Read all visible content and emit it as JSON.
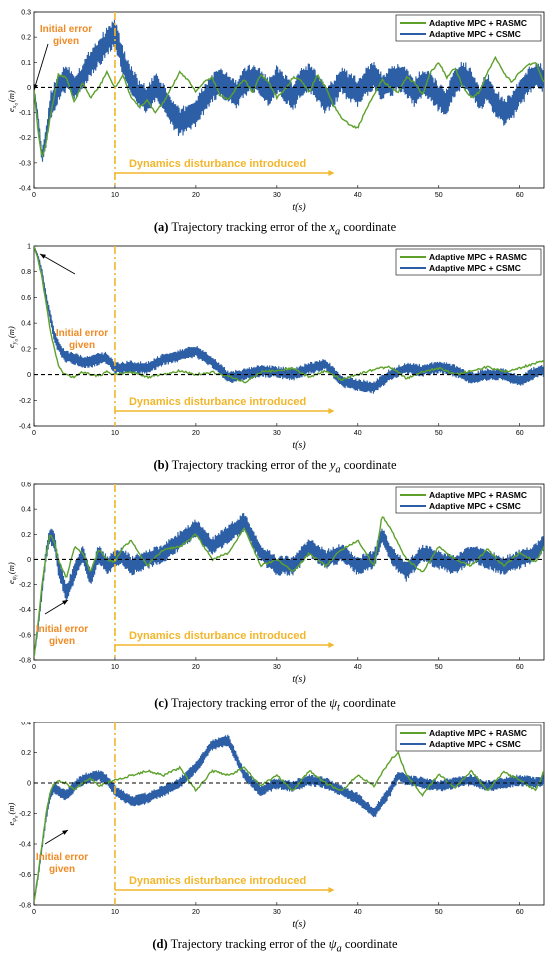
{
  "colors": {
    "rasmc": "#5da12c",
    "csmc": "#2d5fa6",
    "reference": "#000000",
    "disturbance": "#f2b62a",
    "initial_error_text": "#f08a24"
  },
  "chart_data": [
    {
      "type": "line",
      "panel": "a",
      "caption": {
        "tag": "(a)",
        "text_before": " Trajectory tracking error of the ",
        "symbol": "x",
        "sub": "a",
        "text_after": " coordinate"
      },
      "ylabel": {
        "base": "e",
        "sub": "x",
        "subsub": "a",
        "unit": "(m)"
      },
      "xlabel": "t(s)",
      "xlim": [
        0,
        63
      ],
      "ylim": [
        -0.4,
        0.3
      ],
      "xticks": [
        "0",
        "10",
        "20",
        "30",
        "40",
        "50",
        "60"
      ],
      "xtick_values": [
        0,
        10,
        20,
        30,
        40,
        50,
        60
      ],
      "yticks": [
        "-0.4",
        "-0.3",
        "-0.2",
        "-0.1",
        "0",
        "0.1",
        "0.2",
        "0.3"
      ],
      "ytick_values": [
        -0.4,
        -0.3,
        -0.2,
        -0.1,
        0,
        0.1,
        0.2,
        0.3
      ],
      "legend": [
        "Adaptive MPC + RASMC",
        "Adaptive MPC + CSMC"
      ],
      "legend_position": "top-right",
      "annotations": {
        "initial_error": [
          "Initial error",
          "given"
        ],
        "disturbance": "Dynamics disturbance introduced",
        "disturbance_time": 10
      },
      "series": [
        {
          "name": "Adaptive MPC + RASMC",
          "x": [
            0,
            0.5,
            1,
            1.5,
            2,
            3,
            4,
            5,
            6,
            7,
            8,
            9,
            10,
            11,
            12,
            13,
            14,
            15,
            16,
            17,
            18,
            19,
            20,
            21,
            22,
            23,
            24,
            25,
            26,
            27,
            28,
            29,
            30,
            31,
            32,
            33,
            34,
            35,
            36,
            37,
            38,
            39,
            40,
            41,
            42,
            43,
            44,
            45,
            46,
            47,
            48,
            49,
            50,
            51,
            52,
            53,
            54,
            55,
            56,
            57,
            58,
            59,
            60,
            61,
            62,
            63
          ],
          "y": [
            0,
            -0.18,
            -0.28,
            -0.22,
            -0.12,
            0.05,
            0.04,
            -0.06,
            0.02,
            -0.04,
            0.0,
            0.06,
            0.0,
            0.05,
            -0.04,
            -0.08,
            -0.05,
            -0.1,
            -0.06,
            0.0,
            0.06,
            0.03,
            -0.02,
            0.02,
            0.04,
            -0.03,
            -0.05,
            0.0,
            0.03,
            -0.02,
            0.05,
            0.02,
            -0.04,
            -0.01,
            0.04,
            0.03,
            -0.02,
            0.05,
            0.0,
            -0.07,
            -0.12,
            -0.15,
            -0.16,
            -0.09,
            -0.03,
            0.03,
            0.0,
            -0.02,
            0.04,
            0.02,
            -0.03,
            0.06,
            0.1,
            0.04,
            0.08,
            0.0,
            -0.04,
            -0.02,
            0.06,
            0.12,
            0.06,
            0.02,
            0.06,
            0.09,
            0.1,
            0.02
          ]
        },
        {
          "name": "Adaptive MPC + CSMC",
          "amplitude": 0.06,
          "x": [
            0,
            0.5,
            1,
            1.5,
            2,
            3,
            4,
            5,
            6,
            7,
            8,
            9,
            10,
            11,
            12,
            13,
            14,
            15,
            16,
            17,
            18,
            19,
            20,
            21,
            22,
            23,
            24,
            25,
            26,
            27,
            28,
            29,
            30,
            31,
            32,
            33,
            34,
            35,
            36,
            37,
            38,
            39,
            40,
            41,
            42,
            43,
            44,
            45,
            46,
            47,
            48,
            49,
            50,
            51,
            52,
            53,
            54,
            55,
            56,
            57,
            58,
            59,
            60,
            61,
            62,
            63
          ],
          "y": [
            0,
            -0.12,
            -0.28,
            -0.2,
            -0.08,
            0.0,
            0.04,
            0.0,
            0.04,
            0.1,
            0.14,
            0.18,
            0.22,
            0.1,
            0.03,
            -0.03,
            -0.05,
            0.0,
            -0.04,
            -0.1,
            -0.14,
            -0.12,
            -0.1,
            -0.05,
            0.0,
            0.02,
            0.0,
            -0.03,
            0.02,
            0.04,
            0.02,
            -0.02,
            0.03,
            0.0,
            -0.04,
            0.02,
            0.04,
            0.0,
            -0.05,
            -0.02,
            0.03,
            0.0,
            -0.02,
            0.02,
            0.05,
            0.0,
            0.02,
            0.04,
            0.02,
            -0.02,
            0.02,
            0.0,
            -0.04,
            -0.06,
            0.02,
            0.05,
            0.02,
            -0.04,
            0.0,
            -0.06,
            -0.1,
            -0.08,
            -0.02,
            0.02,
            0.05,
            0.03
          ]
        }
      ]
    },
    {
      "type": "line",
      "panel": "b",
      "caption": {
        "tag": "(b)",
        "text_before": " Trajectory tracking error of the ",
        "symbol": "y",
        "sub": "a",
        "text_after": " coordinate"
      },
      "ylabel": {
        "base": "e",
        "sub": "y",
        "subsub": "a",
        "unit": "(m)"
      },
      "xlabel": "t(s)",
      "xlim": [
        0,
        63
      ],
      "ylim": [
        -0.4,
        1
      ],
      "xticks": [
        "0",
        "10",
        "20",
        "30",
        "40",
        "50",
        "60"
      ],
      "xtick_values": [
        0,
        10,
        20,
        30,
        40,
        50,
        60
      ],
      "yticks": [
        "-0.4",
        "-0.2",
        "0",
        "0.2",
        "0.4",
        "0.6",
        "0.8",
        "1"
      ],
      "ytick_values": [
        -0.4,
        -0.2,
        0,
        0.2,
        0.4,
        0.6,
        0.8,
        1
      ],
      "legend": [
        "Adaptive MPC + RASMC",
        "Adaptive MPC + CSMC"
      ],
      "legend_position": "top-right",
      "annotations": {
        "initial_error": [
          "Initial error",
          "given"
        ],
        "disturbance": "Dynamics disturbance introduced",
        "disturbance_time": 10
      },
      "series": [
        {
          "name": "Adaptive MPC + RASMC",
          "x": [
            0,
            0.5,
            1,
            1.5,
            2,
            2.5,
            3,
            3.5,
            4,
            5,
            6,
            7,
            8,
            9,
            10,
            12,
            14,
            16,
            18,
            20,
            22,
            24,
            26,
            28,
            30,
            32,
            34,
            36,
            38,
            40,
            42,
            44,
            46,
            48,
            50,
            52,
            54,
            56,
            58,
            60,
            62,
            63
          ],
          "y": [
            1,
            0.9,
            0.75,
            0.55,
            0.35,
            0.2,
            0.08,
            0.02,
            0.0,
            -0.02,
            0.02,
            0.0,
            -0.01,
            0.02,
            0.0,
            0.02,
            -0.02,
            0.0,
            0.03,
            0.0,
            0.02,
            -0.01,
            -0.06,
            0.02,
            0.03,
            0.05,
            -0.02,
            0.03,
            -0.04,
            0.0,
            0.04,
            0.06,
            -0.03,
            0.02,
            0.05,
            0.0,
            0.03,
            0.06,
            0.02,
            0.05,
            0.09,
            0.1
          ]
        },
        {
          "name": "Adaptive MPC + CSMC",
          "amplitude": 0.05,
          "x": [
            0,
            0.5,
            1,
            1.5,
            2,
            2.5,
            3,
            3.5,
            4,
            5,
            6,
            7,
            8,
            9,
            10,
            12,
            14,
            16,
            18,
            20,
            22,
            24,
            26,
            28,
            30,
            32,
            34,
            36,
            38,
            40,
            42,
            44,
            46,
            48,
            50,
            52,
            54,
            56,
            58,
            60,
            62,
            63
          ],
          "y": [
            1,
            0.92,
            0.8,
            0.6,
            0.45,
            0.3,
            0.22,
            0.17,
            0.14,
            0.12,
            0.1,
            0.1,
            0.12,
            0.13,
            0.05,
            0.06,
            0.05,
            0.12,
            0.15,
            0.18,
            0.1,
            -0.02,
            0.0,
            0.03,
            0.02,
            0.0,
            0.05,
            0.08,
            -0.05,
            -0.08,
            -0.1,
            0.0,
            0.05,
            0.03,
            0.06,
            0.03,
            -0.03,
            0.0,
            0.0,
            -0.05,
            0.02,
            0.03
          ]
        }
      ]
    },
    {
      "type": "line",
      "panel": "c",
      "caption": {
        "tag": "(c)",
        "text_before": " Trajectory tracking error of the ",
        "symbol": "ψ",
        "sub": "t",
        "text_after": " coordinate"
      },
      "ylabel": {
        "base": "e",
        "sub": "ψ",
        "subsub": "t",
        "unit": "(m)"
      },
      "xlabel": "t(s)",
      "xlim": [
        0,
        63
      ],
      "ylim": [
        -0.8,
        0.6
      ],
      "xticks": [
        "0",
        "10",
        "20",
        "30",
        "40",
        "50",
        "60"
      ],
      "xtick_values": [
        0,
        10,
        20,
        30,
        40,
        50,
        60
      ],
      "yticks": [
        "-0.8",
        "-0.6",
        "-0.4",
        "-0.2",
        "0",
        "0.2",
        "0.4",
        "0.6"
      ],
      "ytick_values": [
        -0.8,
        -0.6,
        -0.4,
        -0.2,
        0,
        0.2,
        0.4,
        0.6
      ],
      "legend": [
        "Adaptive MPC + RASMC",
        "Adaptive MPC + CSMC"
      ],
      "legend_position": "top-right",
      "annotations": {
        "initial_error": [
          "Initial error",
          "given"
        ],
        "disturbance": "Dynamics disturbance introduced",
        "disturbance_time": 10
      },
      "series": [
        {
          "name": "Adaptive MPC + RASMC",
          "x": [
            0,
            0.5,
            1,
            1.5,
            2,
            2.5,
            3,
            4,
            5,
            6,
            7,
            8,
            9,
            10,
            11,
            12,
            14,
            16,
            18,
            20,
            22,
            24,
            26,
            28,
            30,
            32,
            34,
            36,
            38,
            40,
            42,
            43,
            44,
            46,
            48,
            50,
            52,
            54,
            56,
            58,
            60,
            62,
            63
          ],
          "y": [
            -0.78,
            -0.5,
            -0.2,
            0.05,
            0.2,
            0.15,
            0.0,
            -0.15,
            0.1,
            0.05,
            -0.1,
            0.08,
            0.0,
            -0.02,
            0.1,
            0.15,
            -0.05,
            0.08,
            0.1,
            0.2,
            0.0,
            0.05,
            0.25,
            -0.05,
            0.0,
            -0.1,
            0.05,
            -0.05,
            0.08,
            0.15,
            -0.05,
            0.35,
            0.25,
            0.0,
            -0.1,
            0.1,
            0.0,
            -0.05,
            0.08,
            -0.05,
            0.05,
            -0.02,
            0.1
          ]
        },
        {
          "name": "Adaptive MPC + CSMC",
          "amplitude": 0.08,
          "x": [
            0,
            0.5,
            1,
            1.5,
            2,
            2.5,
            3,
            4,
            5,
            6,
            7,
            8,
            9,
            10,
            11,
            12,
            14,
            16,
            18,
            20,
            22,
            24,
            26,
            28,
            30,
            32,
            34,
            36,
            38,
            40,
            42,
            43,
            44,
            46,
            48,
            50,
            52,
            54,
            56,
            58,
            60,
            62,
            63
          ],
          "y": [
            -0.78,
            -0.55,
            -0.25,
            0.05,
            0.2,
            0.15,
            -0.05,
            -0.28,
            -0.1,
            0.05,
            -0.15,
            0.05,
            -0.05,
            0.0,
            0.02,
            -0.05,
            0.0,
            0.05,
            0.15,
            0.25,
            0.1,
            0.2,
            0.3,
            0.05,
            -0.05,
            -0.05,
            0.1,
            0.0,
            0.05,
            -0.05,
            0.0,
            0.2,
            0.05,
            -0.1,
            0.05,
            0.0,
            -0.05,
            0.05,
            0.0,
            -0.05,
            0.0,
            0.05,
            0.15
          ]
        }
      ]
    },
    {
      "type": "line",
      "panel": "d",
      "caption": {
        "tag": "(d)",
        "text_before": " Trajectory tracking error of the ",
        "symbol": "ψ",
        "sub": "a",
        "text_after": " coordinate"
      },
      "ylabel": {
        "base": "e",
        "sub": "ψ",
        "subsub": "a",
        "unit": "(m)"
      },
      "xlabel": "t(s)",
      "xlim": [
        0,
        63
      ],
      "ylim": [
        -0.8,
        0.4
      ],
      "xticks": [
        "0",
        "10",
        "20",
        "30",
        "40",
        "50",
        "60"
      ],
      "xtick_values": [
        0,
        10,
        20,
        30,
        40,
        50,
        60
      ],
      "yticks": [
        "-0.8",
        "-0.6",
        "-0.4",
        "-0.2",
        "0",
        "0.2",
        "0.4"
      ],
      "ytick_values": [
        -0.8,
        -0.6,
        -0.4,
        -0.2,
        0,
        0.2,
        0.4
      ],
      "legend": [
        "Adaptive MPC + RASMC",
        "Adaptive MPC + CSMC"
      ],
      "legend_position": "top-right",
      "annotations": {
        "initial_error": [
          "Initial error",
          "given"
        ],
        "disturbance": "Dynamics disturbance introduced",
        "disturbance_time": 10
      },
      "series": [
        {
          "name": "Adaptive MPC + RASMC",
          "x": [
            0,
            0.5,
            1,
            1.5,
            2,
            2.5,
            3,
            4,
            5,
            6,
            7,
            8,
            9,
            10,
            12,
            14,
            16,
            18,
            20,
            22,
            24,
            26,
            28,
            30,
            32,
            34,
            36,
            38,
            40,
            42,
            44,
            45,
            46,
            48,
            50,
            52,
            54,
            56,
            58,
            60,
            62,
            63
          ],
          "y": [
            -0.78,
            -0.6,
            -0.4,
            -0.2,
            -0.06,
            0.0,
            0.01,
            0.0,
            -0.05,
            0.0,
            0.03,
            -0.02,
            0.0,
            0.02,
            0.05,
            0.08,
            0.05,
            0.1,
            -0.05,
            0.08,
            0.05,
            0.1,
            -0.02,
            0.05,
            -0.05,
            0.08,
            0.0,
            -0.05,
            0.05,
            -0.02,
            0.15,
            0.2,
            0.05,
            -0.08,
            0.06,
            -0.03,
            0.08,
            -0.05,
            0.07,
            0.02,
            -0.05,
            0.08
          ]
        },
        {
          "name": "Adaptive MPC + CSMC",
          "amplitude": 0.04,
          "x": [
            0,
            0.5,
            1,
            1.5,
            2,
            2.5,
            3,
            4,
            5,
            6,
            7,
            8,
            9,
            10,
            12,
            14,
            16,
            18,
            20,
            22,
            24,
            26,
            28,
            30,
            32,
            34,
            36,
            38,
            40,
            42,
            44,
            45,
            46,
            48,
            50,
            52,
            54,
            56,
            58,
            60,
            62,
            63
          ],
          "y": [
            -0.78,
            -0.62,
            -0.42,
            -0.22,
            -0.08,
            -0.03,
            -0.05,
            -0.08,
            -0.02,
            0.02,
            0.04,
            0.05,
            0.02,
            -0.05,
            -0.12,
            -0.1,
            -0.05,
            0.0,
            0.1,
            0.25,
            0.28,
            0.05,
            -0.05,
            0.0,
            -0.02,
            0.02,
            0.0,
            -0.05,
            -0.1,
            -0.2,
            -0.05,
            0.05,
            0.02,
            0.0,
            -0.02,
            0.0,
            0.02,
            -0.02,
            0.0,
            0.02,
            0.0,
            0.02
          ]
        }
      ]
    }
  ]
}
